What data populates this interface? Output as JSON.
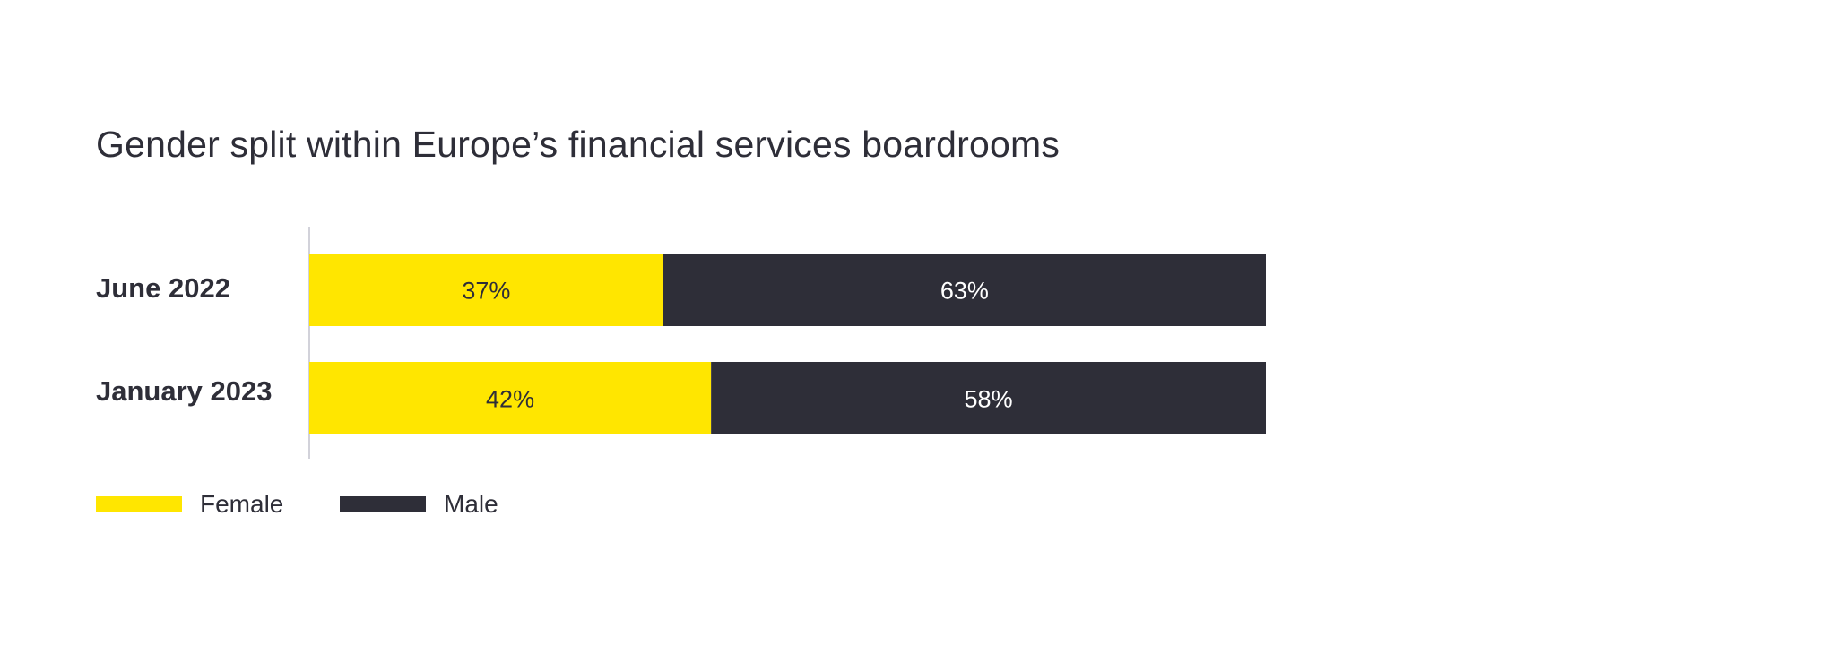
{
  "chart_data": {
    "type": "bar",
    "orientation": "horizontal",
    "stacked": true,
    "title": "Gender split within Europe’s financial services boardrooms",
    "categories": [
      "June 2022",
      "January 2023"
    ],
    "series": [
      {
        "name": "Female",
        "values": [
          37,
          42
        ],
        "color": "#ffe600",
        "label_color": "#2e2e38"
      },
      {
        "name": "Male",
        "values": [
          63,
          58
        ],
        "color": "#2e2e38",
        "label_color": "#ffffff"
      }
    ],
    "value_labels": [
      [
        "37%",
        "42%"
      ],
      [
        "63%",
        "58%"
      ]
    ],
    "xlim": [
      0,
      100
    ],
    "grid": false,
    "legend_position": "bottom-left"
  }
}
